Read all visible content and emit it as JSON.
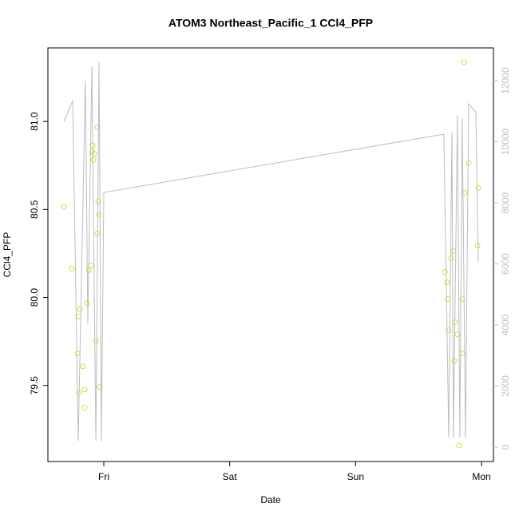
{
  "chart_data": {
    "type": "scatter",
    "title": "ATOM3 Northeast_Pacific_1 CCl4_PFP",
    "xlabel": "Date",
    "ylabel": "CCl4_PFP",
    "xlim": [
      0.556,
      4.095
    ],
    "xticks": [
      {
        "value": 1,
        "label": "Fri"
      },
      {
        "value": 2,
        "label": "Sat"
      },
      {
        "value": 3,
        "label": "Sun"
      },
      {
        "value": 4,
        "label": "Mon"
      }
    ],
    "ylim": [
      79.068,
      81.418
    ],
    "yticks": [
      79.5,
      {
        "value": 80,
        "label": "80.0"
      },
      80.5,
      {
        "value": 81,
        "label": "81.0"
      }
    ],
    "y2lim": [
      -470,
      13072
    ],
    "y2ticks": [
      0,
      2000,
      4000,
      6000,
      8000,
      10000,
      12000
    ],
    "y2color": "#c0c0c0",
    "series": [
      {
        "color": "#c3e83a",
        "x": [
          0.683,
          0.746,
          0.791,
          0.797,
          0.803,
          0.81,
          0.835,
          0.848,
          0.848,
          0.867,
          0.88,
          0.899,
          0.905,
          0.911,
          0.918,
          0.924,
          0.937,
          0.949,
          0.956,
          0.949,
          0.962,
          0.968,
          3.708,
          3.727,
          3.733,
          3.739,
          3.758,
          3.777,
          3.784,
          3.79,
          3.809,
          3.822,
          3.847,
          3.854,
          3.866,
          3.86,
          3.898,
          3.968,
          3.974
        ],
        "values": [
          80.514,
          80.164,
          79.682,
          79.891,
          79.459,
          79.932,
          79.609,
          79.477,
          79.373,
          79.968,
          80.155,
          80.182,
          80.827,
          80.864,
          80.782,
          80.818,
          79.755,
          80.968,
          80.545,
          80.364,
          80.473,
          79.491,
          80.145,
          80.086,
          79.991,
          79.814,
          80.223,
          80.264,
          79.641,
          79.859,
          79.791,
          79.159,
          79.991,
          79.682,
          80.595,
          81.336,
          80.764,
          80.295,
          80.623
        ]
      },
      {
        "color": "#bdbdbd",
        "axis": "y2",
        "x": [
          0.683,
          0.753,
          0.797,
          0.854,
          0.873,
          0.905,
          0.937,
          0.962,
          0.981,
          1.0,
          3.701,
          3.74,
          3.765,
          3.777,
          3.809,
          3.828,
          3.847,
          3.873,
          3.898,
          3.955,
          3.974
        ],
        "values": [
          10667,
          11346,
          209,
          12000,
          4052,
          12471,
          209,
          12601,
          209,
          8340,
          10248,
          314,
          10301,
          314,
          10876,
          314,
          10771,
          314,
          11242,
          10980,
          6065
        ]
      }
    ]
  }
}
